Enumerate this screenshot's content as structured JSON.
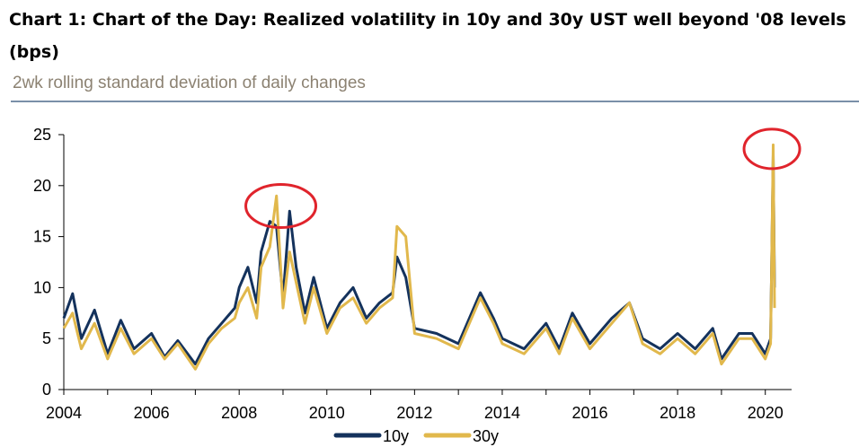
{
  "title": "Chart 1: Chart of the Day: Realized volatility in 10y and 30y UST well beyond '08 levels (bps)",
  "subtitle": "2wk rolling standard deviation of daily changes",
  "colors": {
    "s10y": "#14325c",
    "s30y": "#e1b84c",
    "highlight": "#e0242c",
    "rule": "#7a8fa8"
  },
  "chart_data": {
    "type": "line",
    "xlim": [
      2004,
      2020.6
    ],
    "ylim": [
      0,
      25
    ],
    "xticks": [
      2004,
      2006,
      2008,
      2010,
      2012,
      2014,
      2016,
      2018,
      2020
    ],
    "yticks": [
      0,
      5,
      10,
      15,
      20,
      25
    ],
    "legend_position": "bottom",
    "grid": false,
    "series": [
      {
        "name": "10y",
        "color": "#14325c",
        "points": [
          [
            2004.0,
            7.0
          ],
          [
            2004.2,
            9.4
          ],
          [
            2004.4,
            5.0
          ],
          [
            2004.7,
            7.8
          ],
          [
            2005.0,
            3.5
          ],
          [
            2005.3,
            6.8
          ],
          [
            2005.6,
            4.0
          ],
          [
            2006.0,
            5.5
          ],
          [
            2006.3,
            3.2
          ],
          [
            2006.6,
            4.8
          ],
          [
            2007.0,
            2.5
          ],
          [
            2007.3,
            5.0
          ],
          [
            2007.6,
            6.5
          ],
          [
            2007.9,
            8.0
          ],
          [
            2008.0,
            10.0
          ],
          [
            2008.2,
            12.0
          ],
          [
            2008.4,
            8.5
          ],
          [
            2008.5,
            13.5
          ],
          [
            2008.7,
            16.5
          ],
          [
            2008.85,
            16.0
          ],
          [
            2009.0,
            9.0
          ],
          [
            2009.15,
            17.5
          ],
          [
            2009.3,
            12.0
          ],
          [
            2009.5,
            7.5
          ],
          [
            2009.7,
            11.0
          ],
          [
            2010.0,
            6.0
          ],
          [
            2010.3,
            8.5
          ],
          [
            2010.6,
            10.0
          ],
          [
            2010.9,
            7.0
          ],
          [
            2011.2,
            8.5
          ],
          [
            2011.5,
            9.5
          ],
          [
            2011.6,
            13.0
          ],
          [
            2011.8,
            11.0
          ],
          [
            2012.0,
            6.0
          ],
          [
            2012.5,
            5.5
          ],
          [
            2013.0,
            4.5
          ],
          [
            2013.5,
            9.5
          ],
          [
            2013.8,
            7.0
          ],
          [
            2014.0,
            5.0
          ],
          [
            2014.5,
            4.0
          ],
          [
            2015.0,
            6.5
          ],
          [
            2015.3,
            4.0
          ],
          [
            2015.6,
            7.5
          ],
          [
            2016.0,
            4.5
          ],
          [
            2016.5,
            7.0
          ],
          [
            2016.9,
            8.5
          ],
          [
            2017.2,
            5.0
          ],
          [
            2017.6,
            4.0
          ],
          [
            2018.0,
            5.5
          ],
          [
            2018.4,
            4.0
          ],
          [
            2018.8,
            6.0
          ],
          [
            2019.0,
            3.0
          ],
          [
            2019.4,
            5.5
          ],
          [
            2019.7,
            5.5
          ],
          [
            2020.0,
            3.5
          ],
          [
            2020.12,
            5.0
          ],
          [
            2020.18,
            23.0
          ],
          [
            2020.21,
            10.0
          ]
        ]
      },
      {
        "name": "30y",
        "color": "#e1b84c",
        "points": [
          [
            2004.0,
            6.0
          ],
          [
            2004.2,
            7.5
          ],
          [
            2004.4,
            4.0
          ],
          [
            2004.7,
            6.5
          ],
          [
            2005.0,
            3.0
          ],
          [
            2005.3,
            6.0
          ],
          [
            2005.6,
            3.5
          ],
          [
            2006.0,
            5.0
          ],
          [
            2006.3,
            3.0
          ],
          [
            2006.6,
            4.5
          ],
          [
            2007.0,
            2.0
          ],
          [
            2007.3,
            4.5
          ],
          [
            2007.6,
            6.0
          ],
          [
            2007.9,
            7.0
          ],
          [
            2008.0,
            8.5
          ],
          [
            2008.2,
            10.0
          ],
          [
            2008.4,
            7.0
          ],
          [
            2008.5,
            12.0
          ],
          [
            2008.7,
            14.0
          ],
          [
            2008.85,
            19.0
          ],
          [
            2009.0,
            8.0
          ],
          [
            2009.15,
            13.5
          ],
          [
            2009.3,
            10.5
          ],
          [
            2009.5,
            6.5
          ],
          [
            2009.7,
            10.0
          ],
          [
            2010.0,
            5.5
          ],
          [
            2010.3,
            8.0
          ],
          [
            2010.6,
            9.0
          ],
          [
            2010.9,
            6.5
          ],
          [
            2011.2,
            8.0
          ],
          [
            2011.5,
            9.0
          ],
          [
            2011.6,
            16.0
          ],
          [
            2011.8,
            15.0
          ],
          [
            2012.0,
            5.5
          ],
          [
            2012.5,
            5.0
          ],
          [
            2013.0,
            4.0
          ],
          [
            2013.5,
            9.0
          ],
          [
            2013.8,
            6.5
          ],
          [
            2014.0,
            4.5
          ],
          [
            2014.5,
            3.5
          ],
          [
            2015.0,
            6.0
          ],
          [
            2015.3,
            3.5
          ],
          [
            2015.6,
            7.0
          ],
          [
            2016.0,
            4.0
          ],
          [
            2016.5,
            6.5
          ],
          [
            2016.9,
            8.5
          ],
          [
            2017.2,
            4.5
          ],
          [
            2017.6,
            3.5
          ],
          [
            2018.0,
            5.0
          ],
          [
            2018.4,
            3.5
          ],
          [
            2018.8,
            5.5
          ],
          [
            2019.0,
            2.5
          ],
          [
            2019.4,
            5.0
          ],
          [
            2019.7,
            5.0
          ],
          [
            2020.0,
            3.0
          ],
          [
            2020.12,
            4.5
          ],
          [
            2020.18,
            24.0
          ],
          [
            2020.21,
            8.0
          ]
        ]
      }
    ],
    "annotations": [
      {
        "type": "ellipse",
        "x": 2008.95,
        "y": 18.0
      },
      {
        "type": "ellipse",
        "x": 2020.15,
        "y": 23.6
      }
    ]
  }
}
